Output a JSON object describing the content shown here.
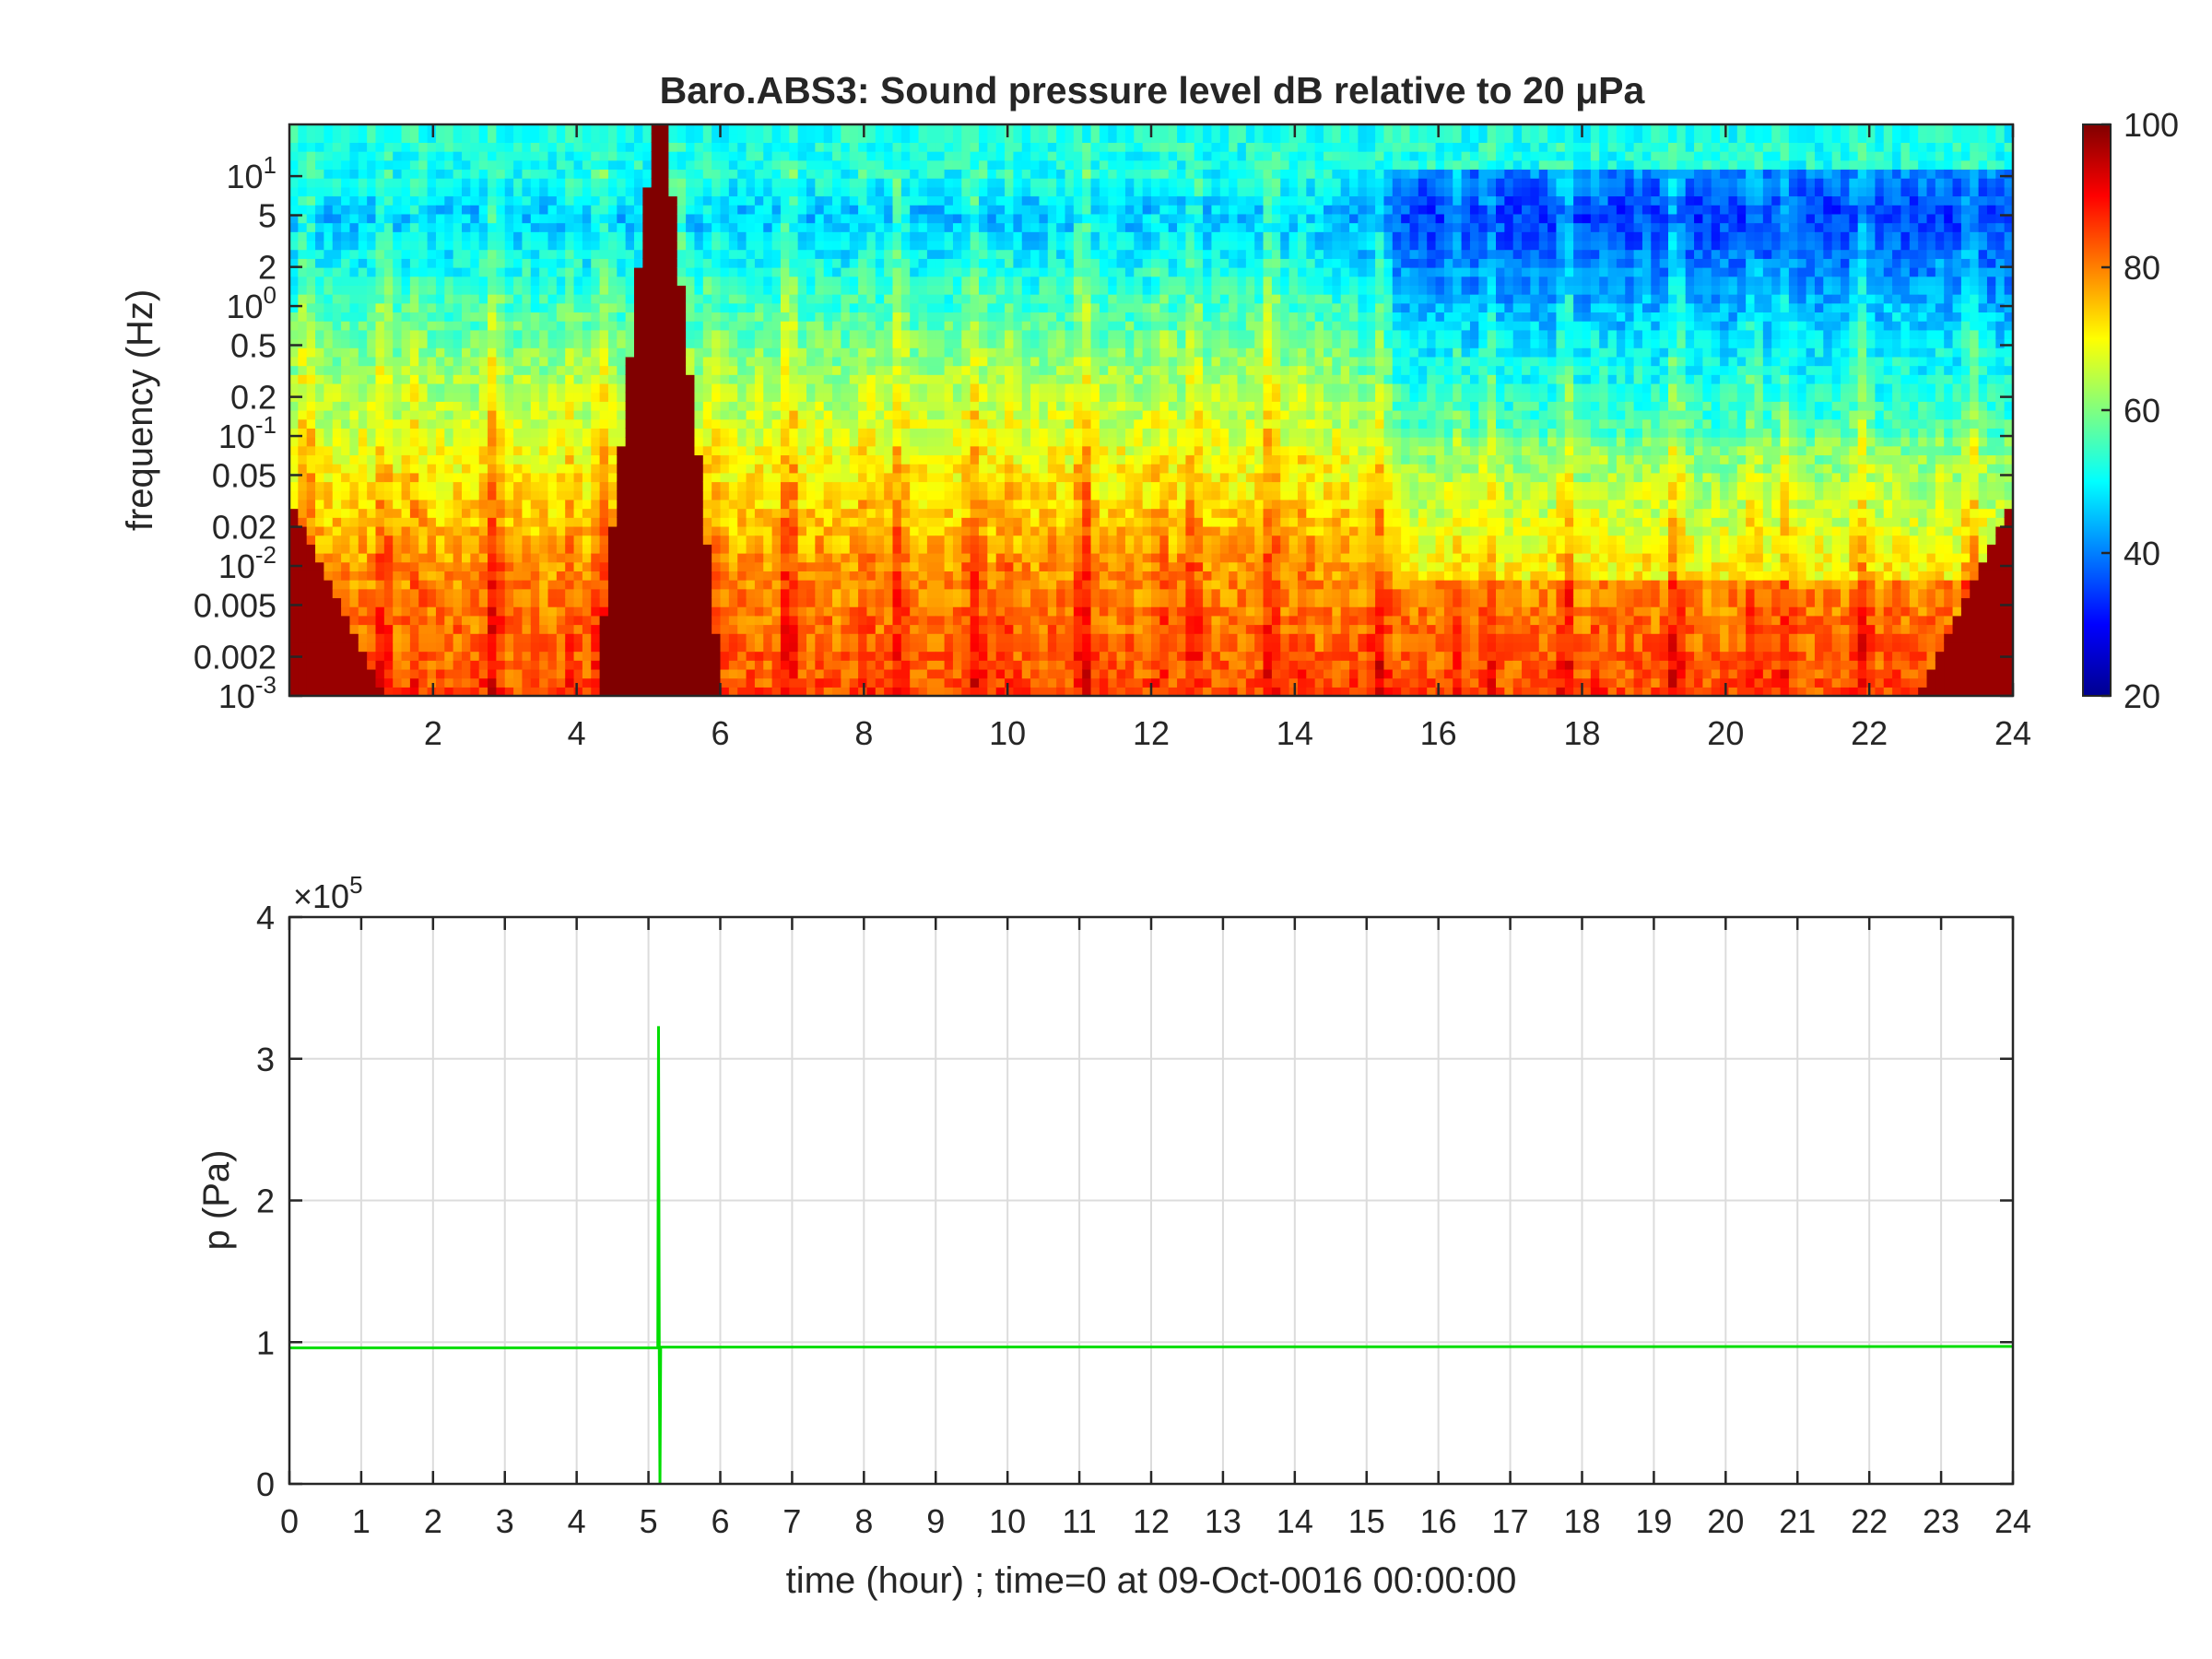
{
  "chart_data": [
    {
      "type": "heatmap",
      "title": "Baro.ABS3: Sound pressure level dB relative to 20 μPa",
      "xlabel": "",
      "ylabel": "frequency (Hz)",
      "xlim": [
        0,
        24
      ],
      "ylim": [
        0.001,
        25
      ],
      "yscale": "log",
      "x_ticks": [
        2,
        4,
        6,
        8,
        10,
        12,
        14,
        16,
        18,
        20,
        22,
        24
      ],
      "x_tick_labels": [
        "2",
        "4",
        "6",
        "8",
        "10",
        "12",
        "14",
        "16",
        "18",
        "20",
        "22",
        "24"
      ],
      "y_ticks": [
        {
          "value": 10,
          "label": "10",
          "exp": "1"
        },
        {
          "value": 5,
          "label": "5",
          "exp": ""
        },
        {
          "value": 2,
          "label": "2",
          "exp": ""
        },
        {
          "value": 1,
          "label": "10",
          "exp": "0"
        },
        {
          "value": 0.5,
          "label": "0.5",
          "exp": ""
        },
        {
          "value": 0.2,
          "label": "0.2",
          "exp": ""
        },
        {
          "value": 0.1,
          "label": "10",
          "exp": "-1"
        },
        {
          "value": 0.05,
          "label": "0.05",
          "exp": ""
        },
        {
          "value": 0.02,
          "label": "0.02",
          "exp": ""
        },
        {
          "value": 0.01,
          "label": "10",
          "exp": "-2"
        },
        {
          "value": 0.005,
          "label": "0.005",
          "exp": ""
        },
        {
          "value": 0.002,
          "label": "0.002",
          "exp": ""
        },
        {
          "value": 0.001,
          "label": "10",
          "exp": "-3"
        }
      ],
      "colormap": "jet",
      "colorbar": {
        "min": 20,
        "max": 100,
        "ticks": [
          "20",
          "40",
          "60",
          "80",
          "100"
        ]
      },
      "features": [
        {
          "time": 5.15,
          "note": "broadband impulse event"
        },
        {
          "time_start": 14.5,
          "time_end": 24,
          "note": "reduced levels above 0.1 Hz"
        }
      ]
    },
    {
      "type": "line",
      "xlabel": "time (hour) ; time=0 at 09-Oct-0016 00:00:00",
      "ylabel": "p (Pa)",
      "xlim": [
        0,
        24
      ],
      "ylim": [
        0,
        400000
      ],
      "exponent_label": "×10",
      "exponent_value": "5",
      "x_ticks": [
        "0",
        "1",
        "2",
        "3",
        "4",
        "5",
        "6",
        "7",
        "8",
        "9",
        "10",
        "11",
        "12",
        "13",
        "14",
        "15",
        "16",
        "17",
        "18",
        "19",
        "20",
        "21",
        "22",
        "23",
        "24"
      ],
      "y_ticks": [
        "0",
        "1",
        "2",
        "3",
        "4"
      ],
      "grid": true,
      "series": [
        {
          "color": "#00dd00",
          "x": [
            0,
            5.13,
            5.14,
            5.15,
            5.16,
            5.17,
            5.18,
            24
          ],
          "y": [
            96000,
            96000,
            323000,
            96000,
            0,
            96000,
            96500,
            97000
          ]
        }
      ]
    }
  ]
}
